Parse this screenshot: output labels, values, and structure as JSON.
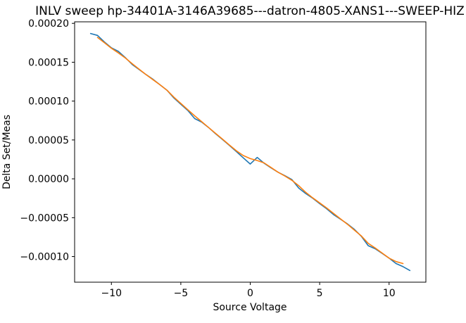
{
  "figure": {
    "background": "#ffffff",
    "frame_color": "#000000"
  },
  "chart_data": {
    "type": "line",
    "title": "INLV sweep hp-34401A-3146A39685---datron-4805-XANS1---SWEEP-HIZ",
    "xlabel": "Source Voltage",
    "ylabel": "Delta Set/Meas",
    "grid": false,
    "legend_position": "none",
    "xlim": [
      -12.65,
      12.65
    ],
    "ylim": [
      -0.000133,
      0.000202
    ],
    "x_ticks": {
      "values": [
        -10,
        -5,
        0,
        5,
        10
      ],
      "labels": [
        "−10",
        "−5",
        "0",
        "5",
        "10"
      ]
    },
    "y_ticks": {
      "values": [
        0.0002,
        0.00015,
        0.0001,
        5e-05,
        0.0,
        -5e-05,
        -0.0001
      ],
      "labels": [
        "0.00020",
        "0.00015",
        "0.00010",
        "0.00005",
        "0.00000",
        "−0.00005",
        "−0.00010"
      ]
    },
    "series": [
      {
        "name": "blue-line",
        "color": "#1f77b4",
        "x": [
          -11.5,
          -11.0,
          -10.5,
          -10.0,
          -9.5,
          -9.0,
          -8.5,
          -8.0,
          -7.5,
          -7.0,
          -6.5,
          -6.0,
          -5.5,
          -5.0,
          -4.5,
          -4.0,
          -3.5,
          -3.0,
          -2.5,
          -2.0,
          -1.5,
          -1.0,
          -0.5,
          0.0,
          0.5,
          1.0,
          1.5,
          2.0,
          2.5,
          3.0,
          3.5,
          4.0,
          4.5,
          5.0,
          5.5,
          6.0,
          6.5,
          7.0,
          7.5,
          8.0,
          8.5,
          9.0,
          9.5,
          10.0,
          10.5,
          11.0,
          11.5
        ],
        "y": [
          0.000187,
          0.0001845,
          0.000176,
          0.0001685,
          0.000164,
          0.000156,
          0.000147,
          0.0001405,
          0.000134,
          0.000128,
          0.000121,
          0.000114,
          0.000104,
          9.6e-05,
          8.8e-05,
          7.75e-05,
          7.3e-05,
          6.6e-05,
          5.8e-05,
          5.05e-05,
          4.3e-05,
          3.5e-05,
          2.7e-05,
          1.9e-05,
          2.75e-05,
          2e-05,
          1.4e-05,
          8.5e-06,
          4e-06,
          -1e-06,
          -1.2e-05,
          -1.9e-05,
          -2.5e-05,
          -3.2e-05,
          -3.85e-05,
          -4.6e-05,
          -5.2e-05,
          -5.8e-05,
          -6.5e-05,
          -7.4e-05,
          -8.6e-05,
          -9e-05,
          -9.6e-05,
          -0.000102,
          -0.000109,
          -0.000113,
          -0.000118
        ]
      },
      {
        "name": "orange-line",
        "color": "#ff7f0e",
        "x": [
          -11.0,
          -10.5,
          -10.0,
          -9.5,
          -9.0,
          -8.5,
          -8.0,
          -7.5,
          -7.0,
          -6.5,
          -6.0,
          -5.5,
          -5.0,
          -4.5,
          -4.0,
          -3.5,
          -3.0,
          -2.5,
          -2.0,
          -1.5,
          -1.0,
          -0.5,
          0.0,
          0.5,
          1.0,
          1.5,
          2.0,
          2.5,
          3.0,
          3.5,
          4.0,
          4.5,
          5.0,
          5.5,
          6.0,
          6.5,
          7.0,
          7.5,
          8.0,
          8.5,
          9.0,
          9.5,
          10.0,
          10.5,
          11.0
        ],
        "y": [
          0.000182,
          0.000175,
          0.000168,
          0.000162,
          0.0001555,
          0.000148,
          0.000141,
          0.000134,
          0.0001275,
          0.000121,
          0.000114,
          0.000105,
          9.7e-05,
          8.9e-05,
          8.1e-05,
          7.35e-05,
          6.6e-05,
          5.85e-05,
          5.1e-05,
          4.35e-05,
          3.6e-05,
          3e-05,
          2.6e-05,
          2.35e-05,
          2.05e-05,
          1.45e-05,
          8.5e-06,
          3.5e-06,
          -2e-06,
          -9e-06,
          -1.75e-05,
          -2.45e-05,
          -3.1e-05,
          -3.75e-05,
          -4.45e-05,
          -5.15e-05,
          -5.85e-05,
          -6.6e-05,
          -7.35e-05,
          -8.3e-05,
          -8.9e-05,
          -9.55e-05,
          -0.000102,
          -0.0001065,
          -0.000109
        ]
      }
    ]
  }
}
